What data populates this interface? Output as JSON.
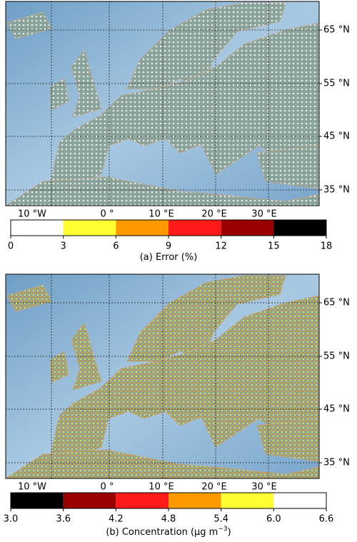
{
  "panels": [
    {
      "lat_labels": [
        "65 °N",
        "55 °N",
        "45 °N",
        "35 °N"
      ],
      "lon_labels": [
        "10 °W",
        "0 °",
        "10 °E",
        "20 °E",
        "30 °E"
      ],
      "colorbar": {
        "ticks": [
          0,
          3,
          6,
          9,
          12,
          15,
          18
        ],
        "colors": [
          "#ffffff",
          "#ffff33",
          "#ff9900",
          "#ff1a1a",
          "#990000",
          "#000000"
        ]
      },
      "caption": [
        "(a) Error (%)"
      ]
    },
    {
      "lat_labels": [
        "65 °N",
        "55 °N",
        "45 °N",
        "35 °N"
      ],
      "lon_labels": [
        "10 °W",
        "0 °",
        "10 °E",
        "20 °E",
        "30 °E"
      ],
      "colorbar": {
        "ticks": [
          {
            "value": 3,
            "label": "3.0"
          },
          3.6,
          4.2,
          4.8,
          5.4,
          {
            "value": 6,
            "label": "6.0"
          },
          6.6
        ],
        "colors": [
          "#000000",
          "#990000",
          "#ff1a1a",
          "#ff9900",
          "#ffff33",
          "#ffffff"
        ]
      },
      "caption": [
        "(b) Concentration (µg m",
        "−3",
        ")"
      ]
    }
  ]
}
